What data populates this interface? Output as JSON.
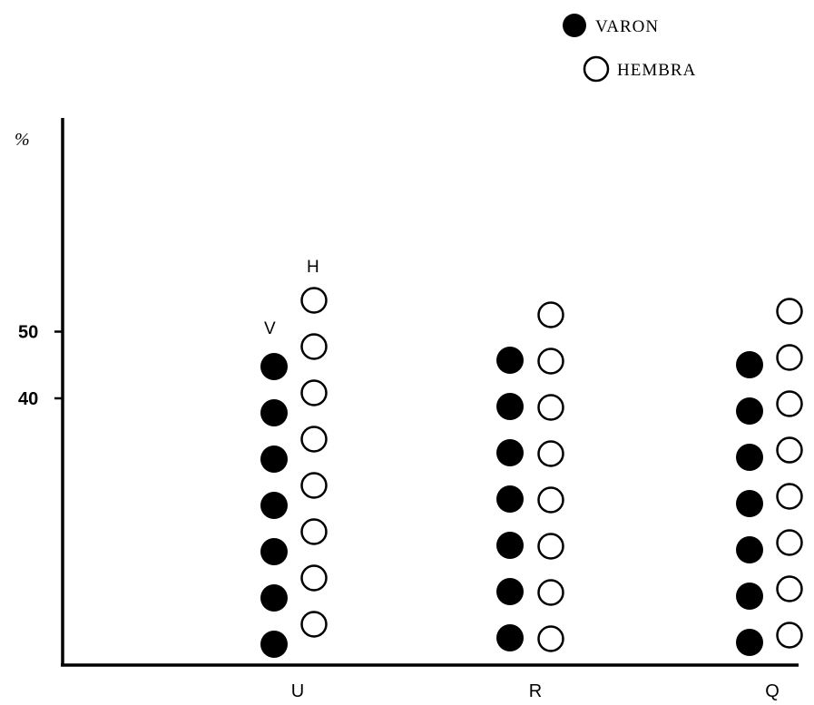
{
  "chart_data": {
    "type": "scatter",
    "ylabel": "%",
    "yticks": [
      40,
      50
    ],
    "ylim": [
      0,
      80
    ],
    "categories": [
      "U",
      "R",
      "Q"
    ],
    "legend": {
      "placement": "top-right",
      "entries": [
        {
          "label": "VARON",
          "marker": "filled-circle"
        },
        {
          "label": "HEMBRA",
          "marker": "open-circle"
        }
      ]
    },
    "column_labels": {
      "male": "V",
      "female": "H"
    },
    "series": [
      {
        "name": "VARON",
        "marker": "filled-circle",
        "color": "#000000",
        "values": [
          43,
          44,
          43
        ]
      },
      {
        "name": "HEMBRA",
        "marker": "open-circle",
        "color": "#000000",
        "values": [
          52,
          50,
          50
        ]
      }
    ],
    "dot_counts": {
      "VARON": [
        7,
        7,
        7
      ],
      "HEMBRA": [
        8,
        8,
        8
      ]
    },
    "grid": false
  }
}
